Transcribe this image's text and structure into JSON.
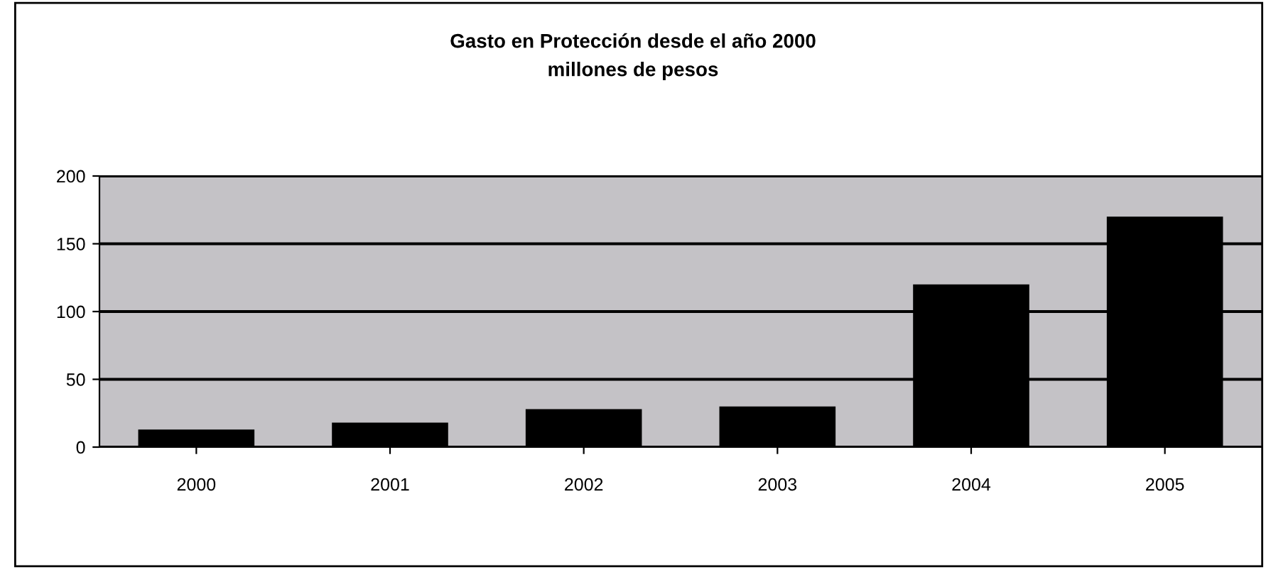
{
  "chart_data": {
    "type": "bar",
    "title": "Gasto en Protección desde el año 2000",
    "subtitle": "millones de pesos",
    "categories": [
      "2000",
      "2001",
      "2002",
      "2003",
      "2004",
      "2005"
    ],
    "values": [
      13,
      18,
      28,
      30,
      120,
      170
    ],
    "color": "#000000",
    "ylim": [
      0,
      200
    ],
    "yticks": [
      0,
      50,
      100,
      150,
      200
    ],
    "grid": "y"
  }
}
